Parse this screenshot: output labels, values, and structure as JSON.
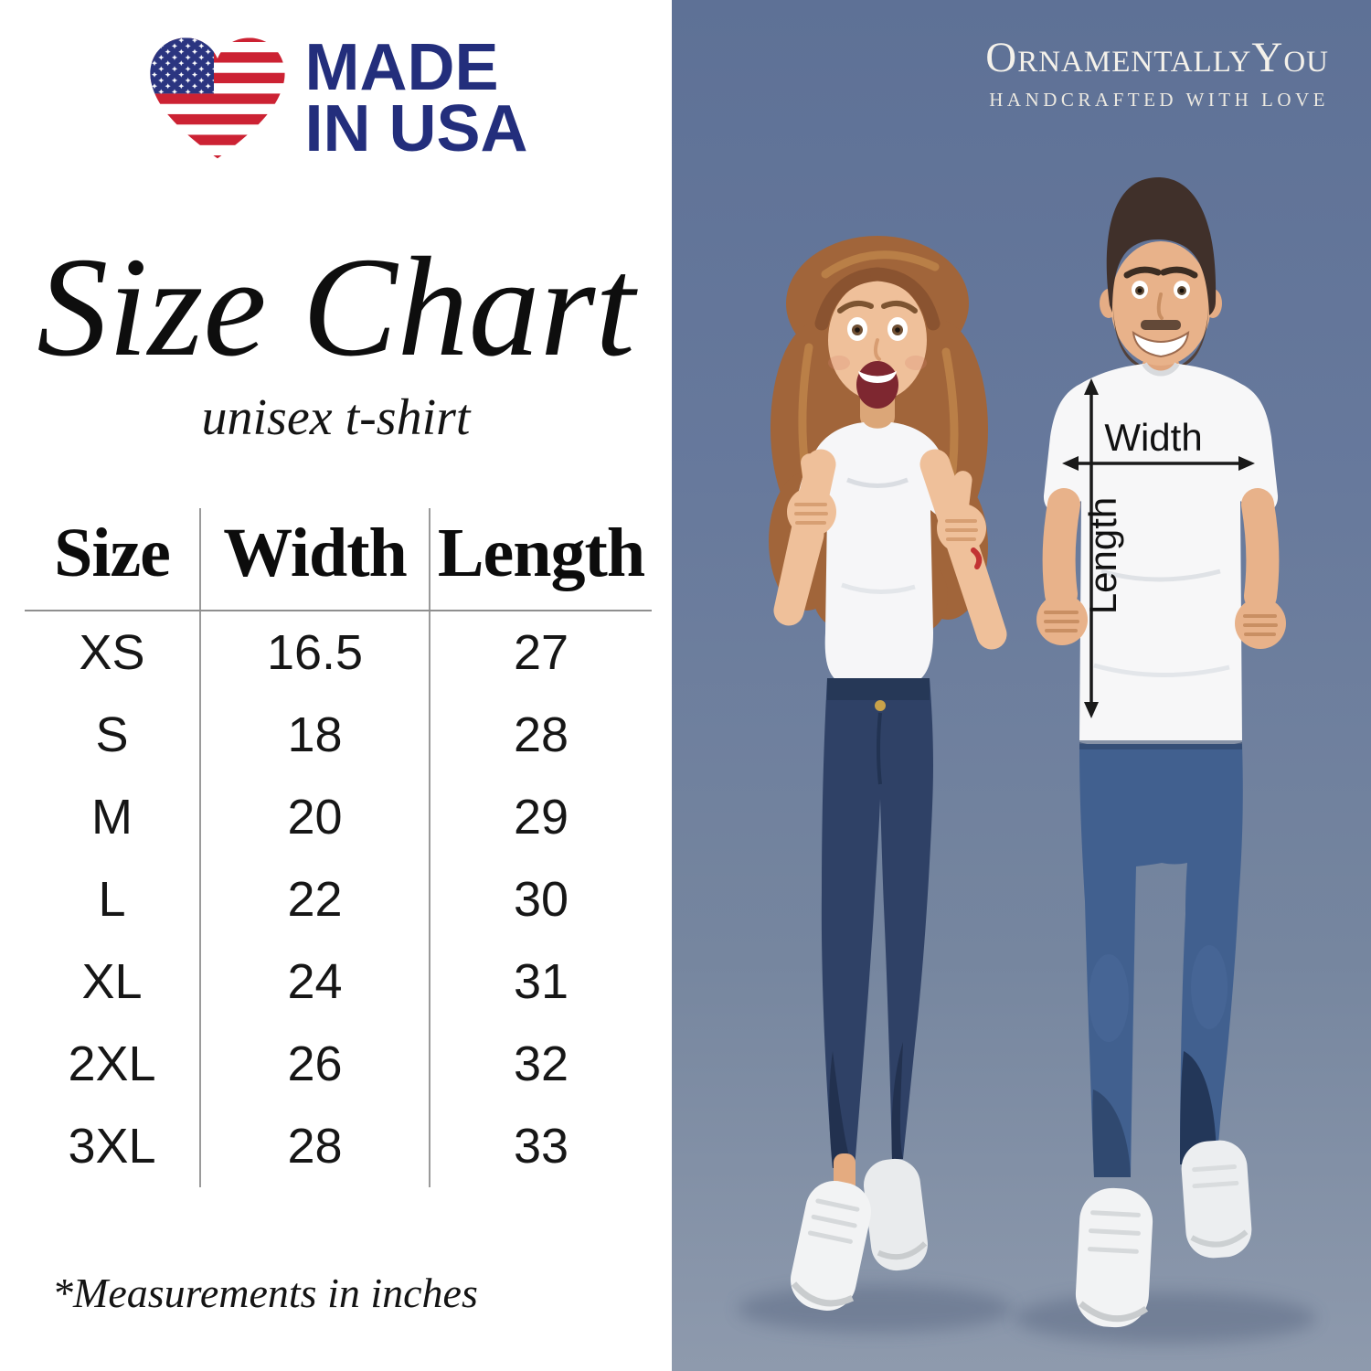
{
  "badge": {
    "line1": "MADE",
    "line2": "IN USA",
    "flag": "usa-flag-heart"
  },
  "title": "Size Chart",
  "subtitle": "unisex t-shirt",
  "size_table": {
    "headers": [
      "Size",
      "Width",
      "Length"
    ],
    "rows": [
      [
        "XS",
        "16.5",
        "27"
      ],
      [
        "S",
        "18",
        "28"
      ],
      [
        "M",
        "20",
        "29"
      ],
      [
        "L",
        "22",
        "30"
      ],
      [
        "XL",
        "24",
        "31"
      ],
      [
        "2XL",
        "26",
        "32"
      ],
      [
        "3XL",
        "28",
        "33"
      ]
    ]
  },
  "footnote": "*Measurements in inches",
  "brand": {
    "name": "OrnamentallyYou",
    "tagline": "HANDCRAFTED WITH LOVE"
  },
  "photo": {
    "width_label": "Width",
    "length_label": "Length"
  },
  "colors": {
    "badge_navy": "#232e7c",
    "flag_red": "#cc2233",
    "flag_blue": "#2b3580",
    "photo_bg_top": "#5e7196",
    "photo_bg_bottom": "#8e9aad",
    "table_line": "#9a9a9a",
    "text": "#111111",
    "brand_text": "#f4f1ea",
    "arrow": "#1a1a1a"
  }
}
